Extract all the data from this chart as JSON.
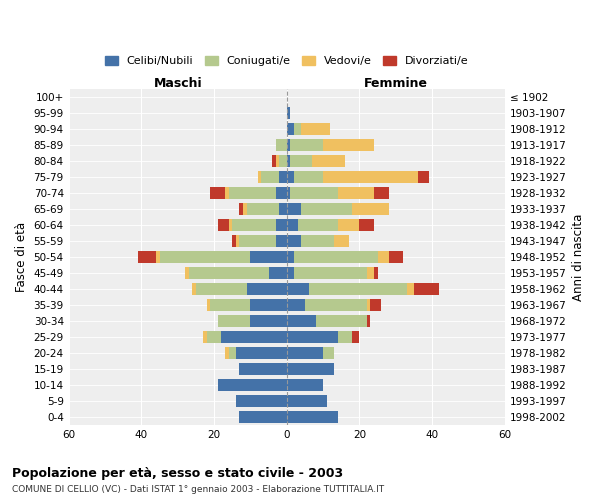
{
  "age_groups": [
    "0-4",
    "5-9",
    "10-14",
    "15-19",
    "20-24",
    "25-29",
    "30-34",
    "35-39",
    "40-44",
    "45-49",
    "50-54",
    "55-59",
    "60-64",
    "65-69",
    "70-74",
    "75-79",
    "80-84",
    "85-89",
    "90-94",
    "95-99",
    "100+"
  ],
  "birth_years": [
    "1998-2002",
    "1993-1997",
    "1988-1992",
    "1983-1987",
    "1978-1982",
    "1973-1977",
    "1968-1972",
    "1963-1967",
    "1958-1962",
    "1953-1957",
    "1948-1952",
    "1943-1947",
    "1938-1942",
    "1933-1937",
    "1928-1932",
    "1923-1927",
    "1918-1922",
    "1913-1917",
    "1908-1912",
    "1903-1907",
    "≤ 1902"
  ],
  "maschi": {
    "celibi": [
      13,
      14,
      19,
      13,
      14,
      18,
      10,
      10,
      11,
      5,
      10,
      3,
      3,
      2,
      3,
      2,
      0,
      0,
      0,
      0,
      0
    ],
    "coniugati": [
      0,
      0,
      0,
      0,
      2,
      4,
      9,
      11,
      14,
      22,
      25,
      10,
      12,
      9,
      13,
      5,
      2,
      3,
      0,
      0,
      0
    ],
    "vedovi": [
      0,
      0,
      0,
      0,
      1,
      1,
      0,
      1,
      1,
      1,
      1,
      1,
      1,
      1,
      1,
      1,
      1,
      0,
      0,
      0,
      0
    ],
    "divorziati": [
      0,
      0,
      0,
      0,
      0,
      0,
      0,
      0,
      0,
      0,
      5,
      1,
      3,
      1,
      4,
      0,
      1,
      0,
      0,
      0,
      0
    ]
  },
  "femmine": {
    "nubili": [
      14,
      11,
      10,
      13,
      10,
      14,
      8,
      5,
      6,
      2,
      2,
      4,
      3,
      4,
      1,
      2,
      1,
      1,
      2,
      1,
      0
    ],
    "coniugate": [
      0,
      0,
      0,
      0,
      3,
      4,
      14,
      17,
      27,
      20,
      23,
      9,
      11,
      14,
      13,
      8,
      6,
      9,
      2,
      0,
      0
    ],
    "vedove": [
      0,
      0,
      0,
      0,
      0,
      0,
      0,
      1,
      2,
      2,
      3,
      4,
      6,
      10,
      10,
      26,
      9,
      14,
      8,
      0,
      0
    ],
    "divorziate": [
      0,
      0,
      0,
      0,
      0,
      2,
      1,
      3,
      7,
      1,
      4,
      0,
      4,
      0,
      4,
      3,
      0,
      0,
      0,
      0,
      0
    ]
  },
  "colors": {
    "celibi": "#4472a8",
    "coniugati": "#b5c98e",
    "vedovi": "#f0c060",
    "divorziati": "#c0392b"
  },
  "xlim": 60,
  "title": "Popolazione per età, sesso e stato civile - 2003",
  "subtitle": "COMUNE DI CELLIO (VC) - Dati ISTAT 1° gennaio 2003 - Elaborazione TUTTITALIA.IT",
  "xlabel_left": "Maschi",
  "xlabel_right": "Femmine",
  "ylabel": "Fasce di età",
  "ylabel_right": "Anni di nascita",
  "legend_labels": [
    "Celibi/Nubili",
    "Coniugati/e",
    "Vedovi/e",
    "Divorziati/e"
  ],
  "background_color": "#ffffff",
  "plot_bg": "#eeeeee",
  "bar_height": 0.75
}
